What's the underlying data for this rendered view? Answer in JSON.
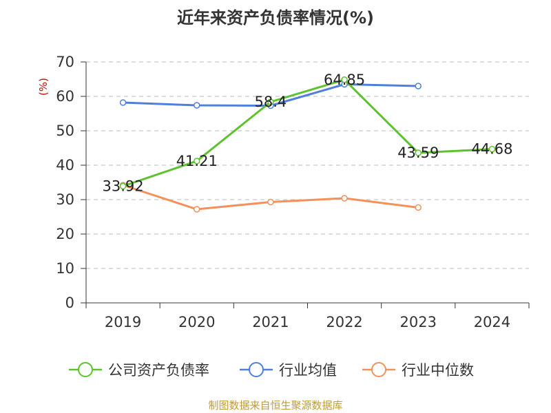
{
  "title": "近年来资产负债率情况(%)",
  "source_note": "制图数据来自恒生聚源数据库",
  "chart_data": {
    "type": "line",
    "title": "近年来资产负债率情况(%)",
    "ylabel": "(%)",
    "xlabel": "",
    "ylim": [
      0,
      70
    ],
    "yticks": [
      0,
      10,
      20,
      30,
      40,
      50,
      60,
      70
    ],
    "categories": [
      "2019",
      "2020",
      "2021",
      "2022",
      "2023",
      "2024"
    ],
    "grid": true,
    "legend_position": "bottom",
    "series": [
      {
        "name": "公司资产负债率",
        "color": "#5cc22e",
        "values": [
          33.92,
          41.21,
          58.4,
          64.85,
          43.59,
          44.68
        ],
        "labels": [
          "33.92",
          "41.21",
          "58.4",
          "64.85",
          "43.59",
          "44.68"
        ]
      },
      {
        "name": "行业均值",
        "color": "#4e7fdc",
        "values": [
          58.2,
          57.4,
          57.3,
          63.5,
          63.0,
          null
        ]
      },
      {
        "name": "行业中位数",
        "color": "#f4905a",
        "values": [
          34.2,
          27.2,
          29.3,
          30.4,
          27.7,
          null
        ]
      }
    ]
  }
}
